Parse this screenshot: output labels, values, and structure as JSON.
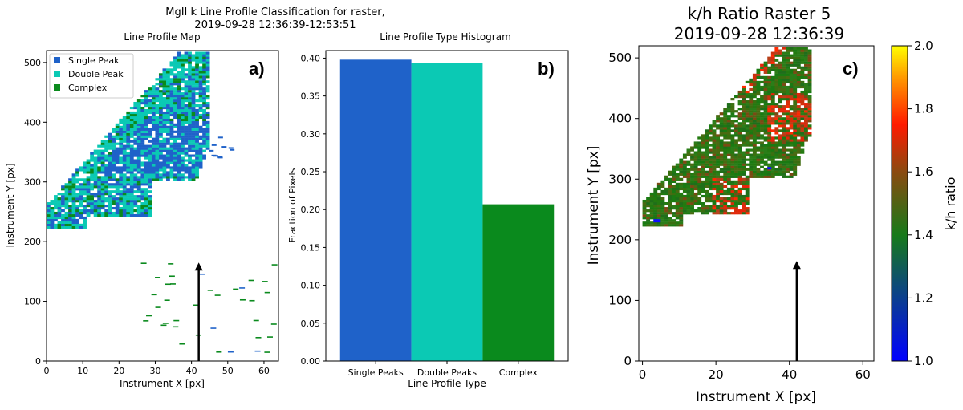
{
  "suptitle_line1": "MgII k Line Profile Classification for raster,",
  "suptitle_line2": "2019-09-28 12:36:39-12:53:51",
  "colors": {
    "single": "#1f62c9",
    "double": "#0bc9b4",
    "complex": "#0a8a1d",
    "arrow": "#000000"
  },
  "chart_data": [
    {
      "type": "heatmap",
      "id": "a",
      "title": "Line Profile Map",
      "panel_label": "a)",
      "xlabel": "Instrument X [px]",
      "ylabel": "Instrument Y [px]",
      "xlim": [
        0,
        64
      ],
      "ylim": [
        0,
        520
      ],
      "xticks": [
        0,
        10,
        20,
        30,
        40,
        50,
        60
      ],
      "yticks": [
        0,
        100,
        200,
        300,
        400,
        500
      ],
      "legend_position": "top-left",
      "legend": [
        "Single Peak",
        "Double Peak",
        "Complex"
      ],
      "arrow": {
        "x": 42,
        "y_from": 0,
        "y_to": 165
      }
    },
    {
      "type": "bar",
      "id": "b",
      "title": "Line Profile Type Histogram",
      "panel_label": "b)",
      "xlabel": "Line Profile Type",
      "ylabel": "Fraction of Pixels",
      "categories": [
        "Single Peaks",
        "Double Peaks",
        "Complex"
      ],
      "values": [
        0.398,
        0.394,
        0.207
      ],
      "ylim": [
        0,
        0.41
      ],
      "yticks": [
        "0.00",
        "0.05",
        "0.10",
        "0.15",
        "0.20",
        "0.25",
        "0.30",
        "0.35",
        "0.40"
      ]
    },
    {
      "type": "heatmap",
      "id": "c",
      "title_line1": "k/h Ratio Raster 5",
      "title_line2": "2019-09-28 12:36:39",
      "panel_label": "c)",
      "xlabel": "Instrument X [px]",
      "ylabel": "Instrument Y [px]",
      "xlim": [
        -1,
        63
      ],
      "ylim": [
        0,
        520
      ],
      "xticks": [
        0,
        20,
        40,
        60
      ],
      "yticks": [
        0,
        100,
        200,
        300,
        400,
        500
      ],
      "colorbar_label": "k/h ratio",
      "colorbar_range": [
        1.0,
        2.0
      ],
      "colorbar_ticks": [
        "1.0",
        "1.2",
        "1.4",
        "1.6",
        "1.8",
        "2.0"
      ],
      "arrow": {
        "x": 42,
        "y_from": 0,
        "y_to": 165
      }
    }
  ]
}
